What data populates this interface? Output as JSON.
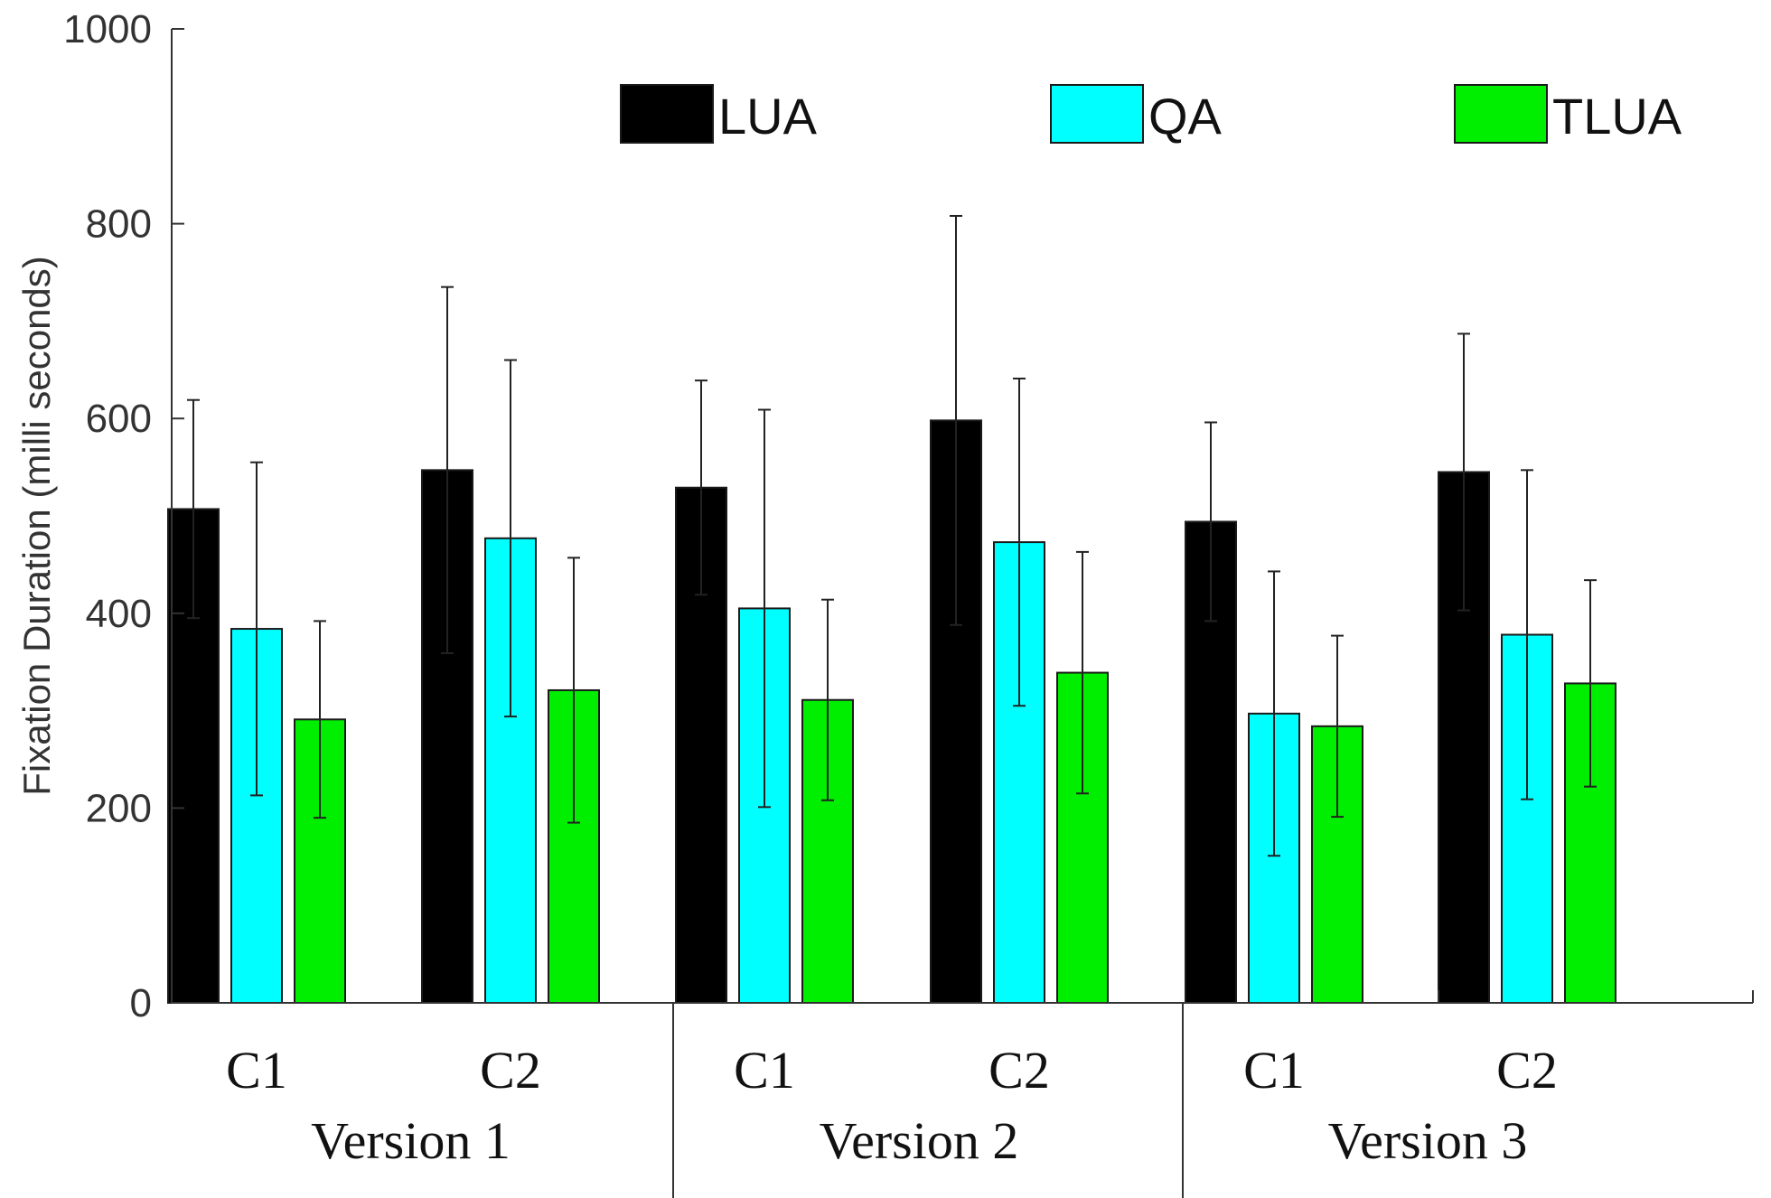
{
  "chart_data": {
    "type": "bar",
    "title": "",
    "ylabel": "Fixation Duration (milli seconds)",
    "ylim": [
      0,
      1000
    ],
    "yticks": [
      0,
      200,
      400,
      600,
      800,
      1000
    ],
    "groups": [
      {
        "label": "Version 1",
        "categories": [
          "C1",
          "C2"
        ]
      },
      {
        "label": "Version 2",
        "categories": [
          "C1",
          "C2"
        ]
      },
      {
        "label": "Version 3",
        "categories": [
          "C1",
          "C2"
        ]
      }
    ],
    "categories": [
      "C1",
      "C2",
      "C1",
      "C2",
      "C1",
      "C2"
    ],
    "series": [
      {
        "name": "LUA",
        "color": "#000000",
        "values": [
          507,
          547,
          529,
          598,
          494,
          545
        ],
        "errors": [
          112,
          188,
          110,
          210,
          102,
          142
        ]
      },
      {
        "name": "QA",
        "color": "#00ffff",
        "values": [
          384,
          477,
          405,
          473,
          297,
          378
        ],
        "errors": [
          171,
          183,
          204,
          168,
          146,
          169
        ]
      },
      {
        "name": "TLUA",
        "color": "#00ee00",
        "values": [
          291,
          321,
          311,
          339,
          284,
          328
        ],
        "errors": [
          101,
          136,
          103,
          124,
          93,
          106
        ]
      }
    ],
    "legend_position": "top-right",
    "grid": false
  }
}
